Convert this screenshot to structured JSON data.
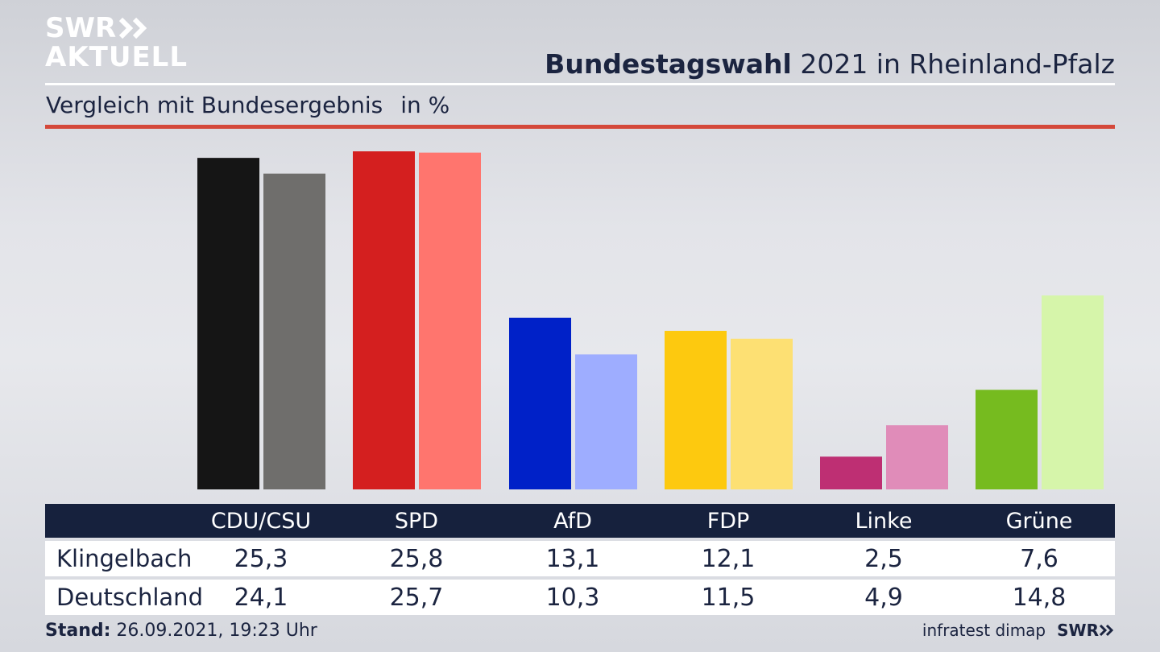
{
  "logo": {
    "line1": "SWR",
    "line2": "AKTUELL"
  },
  "header": {
    "title_bold": "Bundestagswahl",
    "title_rest": "2021 in Rheinland-Pfalz",
    "subtitle": "Vergleich mit Bundesergebnis",
    "unit": "in %"
  },
  "chart_data": {
    "type": "bar",
    "categories": [
      "CDU/CSU",
      "SPD",
      "AfD",
      "FDP",
      "Linke",
      "Grüne"
    ],
    "series": [
      {
        "name": "Klingelbach",
        "values": [
          25.3,
          25.8,
          13.1,
          12.1,
          2.5,
          7.6
        ],
        "colors": [
          "#151515",
          "#d41f1f",
          "#0021c8",
          "#fdc90f",
          "#be2f73",
          "#76bb1f"
        ]
      },
      {
        "name": "Deutschland",
        "values": [
          24.1,
          25.7,
          10.3,
          11.5,
          4.9,
          14.8
        ],
        "colors": [
          "#6f6e6c",
          "#ff756e",
          "#9eadff",
          "#fde073",
          "#e08cb9",
          "#d6f5aa"
        ]
      }
    ],
    "value_labels": [
      [
        "25,3",
        "25,8",
        "13,1",
        "12,1",
        "2,5",
        "7,6"
      ],
      [
        "24,1",
        "25,7",
        "10,3",
        "11,5",
        "4,9",
        "14,8"
      ]
    ],
    "ylim": [
      0,
      25.8
    ],
    "grid": false,
    "legend": "table-below"
  },
  "footer": {
    "stand_label": "Stand:",
    "stand_value": "26.09.2021, 19:23 Uhr",
    "source": "infratest dimap",
    "brand": "SWR"
  }
}
